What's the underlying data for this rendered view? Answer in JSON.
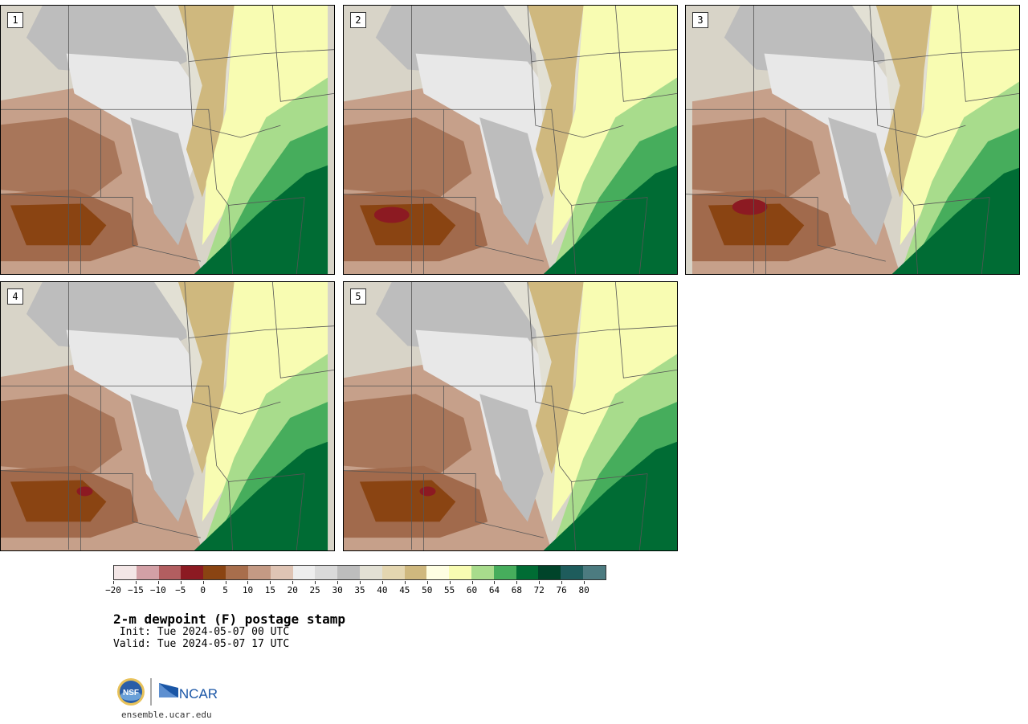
{
  "panels": [
    {
      "label": "1"
    },
    {
      "label": "2"
    },
    {
      "label": "3"
    },
    {
      "label": "4"
    },
    {
      "label": "5"
    }
  ],
  "colorbar": {
    "colors": [
      "#f3e6e6",
      "#d3a0a6",
      "#b25e60",
      "#8c1a22",
      "#8a4412",
      "#a86e4c",
      "#c49a84",
      "#dfc4b4",
      "#eeeeee",
      "#dadada",
      "#bdbdbd",
      "#e2e0d4",
      "#e4d6b0",
      "#cfb87e",
      "#fefee2",
      "#f8fcb2",
      "#a8dc8c",
      "#46ad5c",
      "#006c34",
      "#00442a",
      "#1e5c5c",
      "#4c7b80"
    ],
    "tick_labels": [
      "−20",
      "−15",
      "−10",
      "−5",
      "0",
      "5",
      "10",
      "15",
      "20",
      "25",
      "30",
      "35",
      "40",
      "45",
      "50",
      "55",
      "60",
      "64",
      "68",
      "72",
      "76",
      "80"
    ]
  },
  "title": "2-m dewpoint (F) postage stamp",
  "init": " Init: Tue 2024-05-07 00 UTC",
  "valid": "Valid: Tue 2024-05-07 17 UTC",
  "logos": {
    "nsf": "NSF",
    "ncar": "NCAR"
  },
  "url": "ensemble.ucar.edu"
}
